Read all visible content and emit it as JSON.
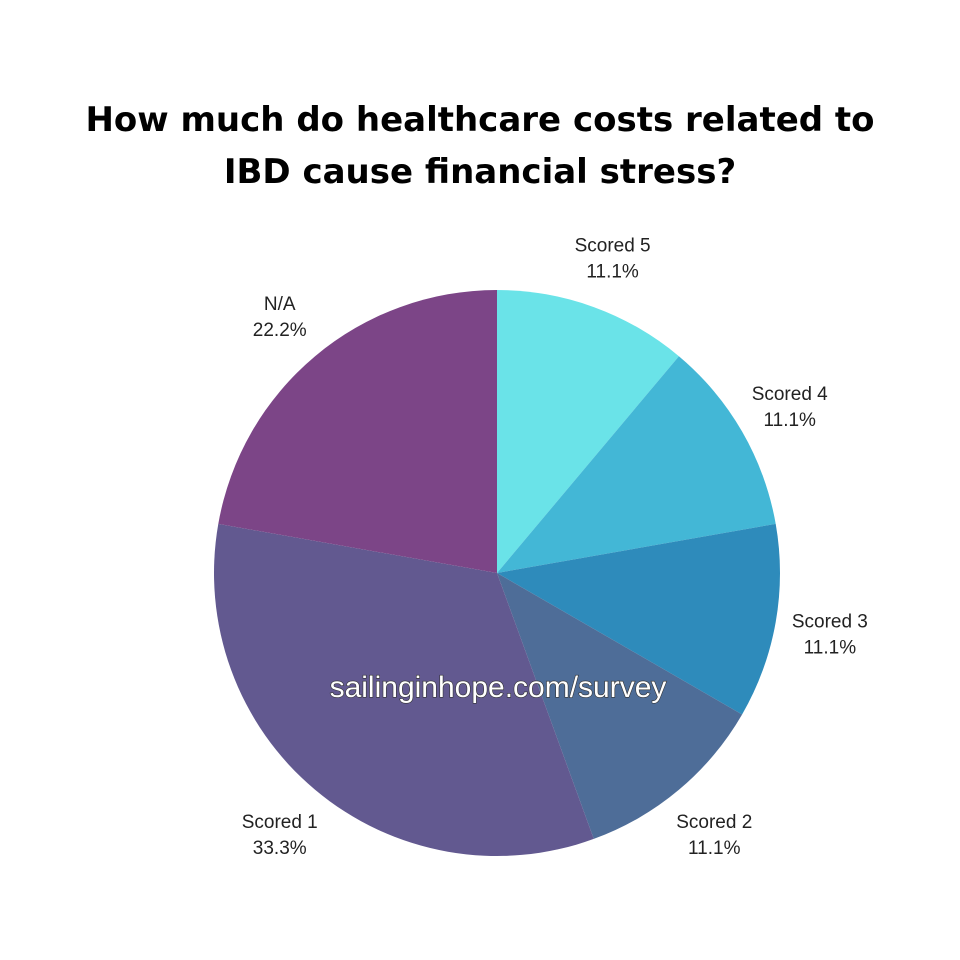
{
  "title_lines": [
    "How much do healthcare costs related to",
    "IBD cause financial stress?"
  ],
  "watermark": "sailinginhope.com/survey",
  "chart_data": {
    "type": "pie",
    "title": "How much do healthcare costs related to IBD cause financial stress?",
    "slices": [
      {
        "label": "Scored 5",
        "percent_label": "11.1%",
        "value": 11.1,
        "color": "#6ae3e8"
      },
      {
        "label": "Scored 4",
        "percent_label": "11.1%",
        "value": 11.1,
        "color": "#43b7d6"
      },
      {
        "label": "Scored 3",
        "percent_label": "11.1%",
        "value": 11.1,
        "color": "#2e8bbb"
      },
      {
        "label": "Scored 2",
        "percent_label": "11.1%",
        "value": 11.1,
        "color": "#4e6d98"
      },
      {
        "label": "Scored 1",
        "percent_label": "33.3%",
        "value": 33.3,
        "color": "#625990"
      },
      {
        "label": "N/A",
        "percent_label": "22.2%",
        "value": 22.2,
        "color": "#7c4587"
      }
    ],
    "start": "top, clockwise",
    "legend": "none (labels outside slices)"
  }
}
